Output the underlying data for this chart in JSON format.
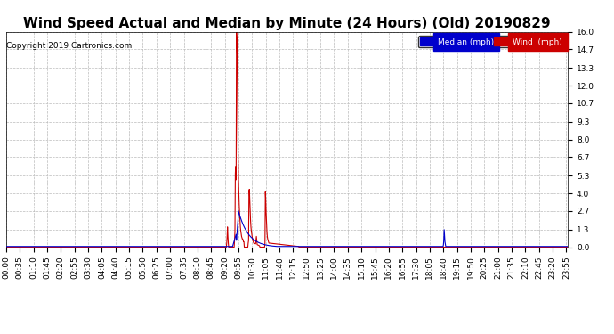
{
  "title": "Wind Speed Actual and Median by Minute (24 Hours) (Old) 20190829",
  "copyright": "Copyright 2019 Cartronics.com",
  "yticks": [
    0.0,
    1.3,
    2.7,
    4.0,
    5.3,
    6.7,
    8.0,
    9.3,
    10.7,
    12.0,
    13.3,
    14.7,
    16.0
  ],
  "ylim": [
    0,
    16.0
  ],
  "legend_median_color": "#0000cc",
  "legend_wind_color": "#cc0000",
  "legend_median_label": "Median (mph)",
  "legend_wind_label": "Wind  (mph)",
  "background_color": "#ffffff",
  "plot_bg_color": "#ffffff",
  "grid_color": "#bbbbbb",
  "title_fontsize": 11,
  "tick_fontsize": 6.5,
  "n_minutes": 1440,
  "wind_spike_minute": 592,
  "wind_spike2_minute": 600,
  "wind_spike3_minute": 607,
  "wind_spike4_minute": 663,
  "median_spike_minute": 592,
  "median_blip_minute": 1122
}
